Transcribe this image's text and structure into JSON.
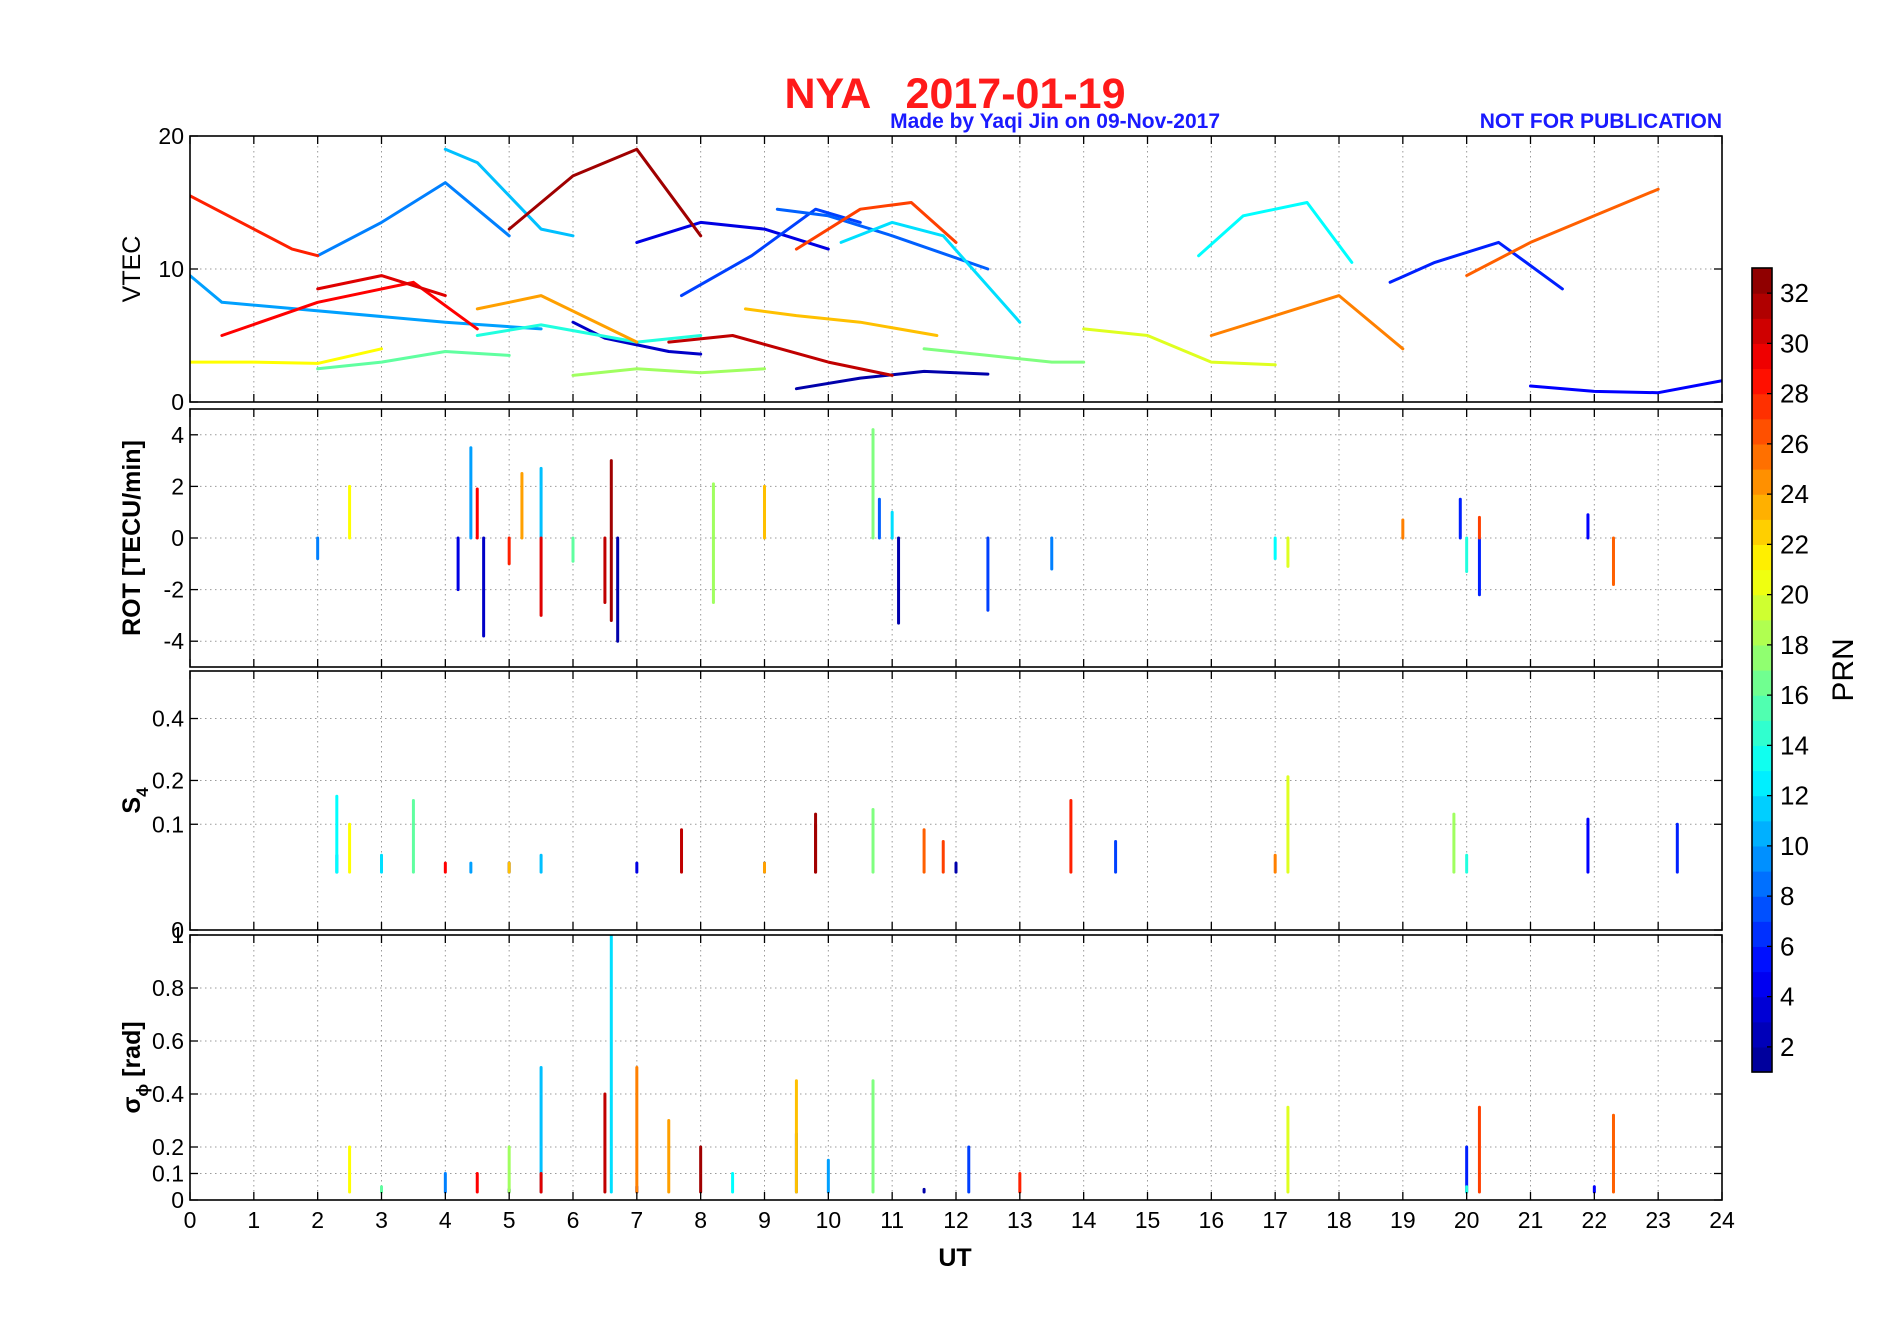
{
  "chart_data": {
    "type": "line",
    "title": "NYA   2017-01-19",
    "notes": {
      "made_by": "Made by Yaqi Jin on 09-Nov-2017",
      "publication": "NOT FOR PUBLICATION"
    },
    "xlabel": "UT",
    "xlim": [
      0,
      24
    ],
    "xticks": [
      "0",
      "1",
      "2",
      "3",
      "4",
      "5",
      "6",
      "7",
      "8",
      "9",
      "10",
      "11",
      "12",
      "13",
      "14",
      "15",
      "16",
      "17",
      "18",
      "19",
      "20",
      "21",
      "22",
      "23",
      "24"
    ],
    "grid": true,
    "panels": [
      {
        "name": "vtec",
        "ylabel": "VTEC",
        "ylim": [
          0,
          20
        ],
        "yticks": [
          {
            "v": 0,
            "t": "0"
          },
          {
            "v": 10,
            "t": "10"
          },
          {
            "v": 20,
            "t": "20"
          }
        ]
      },
      {
        "name": "rot",
        "ylabel": "ROT [TECU/min]",
        "ylim": [
          -5,
          5
        ],
        "yticks": [
          {
            "v": -4,
            "t": "-4"
          },
          {
            "v": -2,
            "t": "-2"
          },
          {
            "v": 0,
            "t": "0"
          },
          {
            "v": 2,
            "t": "2"
          },
          {
            "v": 4,
            "t": "4"
          }
        ]
      },
      {
        "name": "s4",
        "ylabel": "S",
        "ylabel_sub": "4",
        "ylim": [
          0,
          0.6
        ],
        "scale": "sqrt",
        "yticks": [
          {
            "v": 0,
            "t": "0"
          },
          {
            "v": 0.1,
            "t": "0.1"
          },
          {
            "v": 0.2,
            "t": "0.2"
          },
          {
            "v": 0.4,
            "t": "0.4"
          }
        ]
      },
      {
        "name": "sigma_phi",
        "ylabel": "σ",
        "ylabel_sub": "ϕ",
        "ylabel_rest": " [rad]",
        "ylim": [
          0,
          1
        ],
        "yticks": [
          {
            "v": 0,
            "t": "0"
          },
          {
            "v": 0.1,
            "t": "0.1"
          },
          {
            "v": 0.2,
            "t": "0.2"
          },
          {
            "v": 0.4,
            "t": "0.4"
          },
          {
            "v": 0.6,
            "t": "0.6"
          },
          {
            "v": 0.8,
            "t": "0.8"
          },
          {
            "v": 1,
            "t": "1"
          }
        ]
      }
    ],
    "colorbar": {
      "label": "PRN",
      "range": [
        1,
        33
      ],
      "ticks": [
        "2",
        "4",
        "6",
        "8",
        "10",
        "12",
        "14",
        "16",
        "18",
        "20",
        "22",
        "24",
        "26",
        "28",
        "30",
        "32"
      ],
      "colormap": [
        "#00008f",
        "#0000ff",
        "#0080ff",
        "#00ffff",
        "#80ff80",
        "#ffff00",
        "#ff8000",
        "#ff0000",
        "#800000"
      ]
    },
    "series": [
      {
        "prn": 2,
        "vtec": [
          [
            9.5,
            1
          ],
          [
            10.5,
            1.8
          ],
          [
            11.5,
            2.3
          ],
          [
            12.5,
            2.1
          ]
        ],
        "rot": [
          [
            6.7,
            -4
          ],
          [
            11.1,
            -3.3
          ]
        ],
        "s4": [
          [
            12,
            0.04
          ]
        ],
        "sig": [
          [
            11.5,
            0.04
          ]
        ]
      },
      {
        "prn": 3,
        "vtec": [
          [
            6,
            6
          ],
          [
            6.5,
            4.8
          ],
          [
            7.5,
            3.8
          ],
          [
            8,
            3.6
          ]
        ],
        "rot": [
          [
            4.6,
            -3.8
          ]
        ],
        "s4": [
          [
            5,
            0.04
          ]
        ],
        "sig": [
          [
            5,
            0.04
          ]
        ]
      },
      {
        "prn": 4,
        "vtec": [
          [
            7,
            12
          ],
          [
            8,
            13.5
          ],
          [
            9,
            13
          ],
          [
            10,
            11.5
          ]
        ],
        "rot": [
          [
            4.2,
            -2
          ]
        ],
        "s4": [
          [
            7,
            0.04
          ]
        ],
        "sig": [
          [
            7,
            0.05
          ]
        ]
      },
      {
        "prn": 5,
        "vtec": [
          [
            21,
            1.2
          ],
          [
            22,
            0.8
          ],
          [
            23,
            0.7
          ],
          [
            24,
            1.6
          ]
        ],
        "rot": [
          [
            21.9,
            0.9
          ]
        ],
        "s4": [
          [
            21.9,
            0.11
          ]
        ],
        "sig": [
          [
            22,
            0.05
          ]
        ]
      },
      {
        "prn": 6,
        "vtec": [
          [
            18.8,
            9
          ],
          [
            19.5,
            10.5
          ],
          [
            20.5,
            12
          ],
          [
            21.5,
            8.5
          ]
        ],
        "rot": [
          [
            20.2,
            -2.2
          ],
          [
            19.9,
            1.5
          ]
        ],
        "s4": [
          [
            23.3,
            0.1
          ]
        ],
        "sig": [
          [
            20,
            0.2
          ]
        ]
      },
      {
        "prn": 7,
        "vtec": [
          [
            7.7,
            8
          ],
          [
            8.8,
            11
          ],
          [
            9.8,
            14.5
          ],
          [
            10.5,
            13.5
          ]
        ],
        "rot": [
          [
            12.5,
            -2.8
          ]
        ],
        "s4": [
          [
            14.5,
            0.07
          ]
        ],
        "sig": [
          [
            12.2,
            0.2
          ]
        ]
      },
      {
        "prn": 8,
        "vtec": [
          [
            9.2,
            14.5
          ],
          [
            10,
            14
          ],
          [
            11,
            12.5
          ],
          [
            12.5,
            10
          ]
        ],
        "rot": [
          [
            10.8,
            1.5
          ]
        ],
        "s4": [
          [
            9,
            0.04
          ]
        ],
        "sig": [
          [
            9.5,
            0.25
          ]
        ]
      },
      {
        "prn": 9,
        "vtec": [
          [
            2,
            11
          ],
          [
            3,
            13.5
          ],
          [
            4,
            16.5
          ],
          [
            5,
            12.5
          ]
        ],
        "rot": [
          [
            2,
            -0.8
          ],
          [
            13.5,
            -1.2
          ]
        ],
        "s4": [
          [
            2.3,
            0.05
          ]
        ],
        "sig": [
          [
            4,
            0.1
          ]
        ]
      },
      {
        "prn": 10,
        "vtec": [
          [
            0,
            9.5
          ],
          [
            0.5,
            7.5
          ],
          [
            4,
            6
          ],
          [
            5.5,
            5.5
          ]
        ],
        "rot": [
          [
            4.4,
            3.5
          ]
        ],
        "s4": [
          [
            4.4,
            0.04
          ]
        ],
        "sig": [
          [
            10,
            0.15
          ]
        ]
      },
      {
        "prn": 11,
        "vtec": [
          [
            4,
            19
          ],
          [
            4.5,
            18
          ],
          [
            5.5,
            13
          ],
          [
            6,
            12.5
          ]
        ],
        "rot": [
          [
            5.5,
            2.7
          ]
        ],
        "s4": [
          [
            5.5,
            0.05
          ]
        ],
        "sig": [
          [
            5.5,
            0.5
          ]
        ]
      },
      {
        "prn": 12,
        "vtec": [
          [
            10.2,
            12
          ],
          [
            11,
            13.5
          ],
          [
            11.8,
            12.5
          ],
          [
            13,
            6
          ]
        ],
        "rot": [
          [
            11,
            1
          ]
        ],
        "s4": [
          [
            3,
            0.05
          ]
        ],
        "sig": [
          [
            6.6,
            1
          ]
        ]
      },
      {
        "prn": 13,
        "vtec": [
          [
            15.8,
            11
          ],
          [
            16.5,
            14
          ],
          [
            17.5,
            15
          ],
          [
            18.2,
            10.5
          ]
        ],
        "rot": [
          [
            17,
            -0.8
          ]
        ],
        "s4": [
          [
            2.3,
            0.16
          ]
        ],
        "sig": [
          [
            8.5,
            0.1
          ]
        ]
      },
      {
        "prn": 14,
        "vtec": [
          [
            4.5,
            5
          ],
          [
            5.5,
            5.8
          ],
          [
            7,
            4.5
          ],
          [
            8,
            5
          ]
        ],
        "rot": [
          [
            20,
            -1.3
          ]
        ],
        "s4": [
          [
            20,
            0.05
          ]
        ],
        "sig": [
          [
            20,
            0.05
          ]
        ]
      },
      {
        "prn": 16,
        "vtec": [
          [
            2,
            2.5
          ],
          [
            3,
            3
          ],
          [
            4,
            3.8
          ],
          [
            5,
            3.5
          ]
        ],
        "rot": [
          [
            6,
            -0.9
          ]
        ],
        "s4": [
          [
            3.5,
            0.15
          ]
        ],
        "sig": [
          [
            3,
            0.05
          ]
        ]
      },
      {
        "prn": 17,
        "vtec": [
          [
            11.5,
            4
          ],
          [
            12.5,
            3.5
          ],
          [
            13.5,
            3
          ],
          [
            14,
            3
          ]
        ],
        "rot": [
          [
            10.7,
            4.2
          ]
        ],
        "s4": [
          [
            10.7,
            0.13
          ]
        ],
        "sig": [
          [
            10.7,
            0.45
          ]
        ]
      },
      {
        "prn": 18,
        "vtec": [
          [
            6,
            2
          ],
          [
            7,
            2.5
          ],
          [
            8,
            2.2
          ],
          [
            9,
            2.5
          ]
        ],
        "rot": [
          [
            8.2,
            -2.5
          ],
          [
            8.2,
            2.1
          ]
        ],
        "s4": [
          [
            19.8,
            0.12
          ]
        ],
        "sig": [
          [
            5,
            0.2
          ]
        ]
      },
      {
        "prn": 20,
        "vtec": [
          [
            14,
            5.5
          ],
          [
            15,
            5
          ],
          [
            16,
            3
          ],
          [
            17,
            2.8
          ]
        ],
        "rot": [
          [
            17.2,
            -1.1
          ]
        ],
        "s4": [
          [
            17.2,
            0.21
          ]
        ],
        "sig": [
          [
            17.2,
            0.35
          ]
        ]
      },
      {
        "prn": 21,
        "vtec": [
          [
            0,
            3
          ],
          [
            1,
            3
          ],
          [
            2,
            2.9
          ],
          [
            3,
            4
          ]
        ],
        "rot": [
          [
            2.5,
            2
          ]
        ],
        "s4": [
          [
            2.5,
            0.1
          ]
        ],
        "sig": [
          [
            2.5,
            0.2
          ]
        ]
      },
      {
        "prn": 23,
        "vtec": [
          [
            8.7,
            7
          ],
          [
            9.5,
            6.5
          ],
          [
            10.5,
            6
          ],
          [
            11.7,
            5
          ]
        ],
        "rot": [
          [
            9,
            2
          ]
        ],
        "s4": [
          [
            5,
            0.04
          ]
        ],
        "sig": [
          [
            9.5,
            0.45
          ]
        ]
      },
      {
        "prn": 24,
        "vtec": [
          [
            4.5,
            7
          ],
          [
            5,
            7.5
          ],
          [
            5.5,
            8
          ],
          [
            7,
            4.5
          ]
        ],
        "rot": [
          [
            5.2,
            2.5
          ]
        ],
        "s4": [
          [
            9,
            0.04
          ]
        ],
        "sig": [
          [
            7.5,
            0.3
          ]
        ]
      },
      {
        "prn": 25,
        "vtec": [
          [
            16,
            5
          ],
          [
            17,
            6.5
          ],
          [
            18,
            8
          ],
          [
            19,
            4
          ]
        ],
        "rot": [
          [
            19,
            0.7
          ]
        ],
        "s4": [
          [
            17,
            0.05
          ]
        ],
        "sig": [
          [
            7,
            0.5
          ]
        ]
      },
      {
        "prn": 26,
        "vtec": [
          [
            20,
            9.5
          ],
          [
            21,
            12
          ],
          [
            22,
            14
          ],
          [
            23,
            16
          ]
        ],
        "rot": [
          [
            22.3,
            -1.8
          ]
        ],
        "s4": [
          [
            11.5,
            0.09
          ]
        ],
        "sig": [
          [
            22.3,
            0.32
          ]
        ]
      },
      {
        "prn": 27,
        "vtec": [
          [
            9.5,
            11.5
          ],
          [
            10.5,
            14.5
          ],
          [
            11.3,
            15
          ],
          [
            12,
            12
          ]
        ],
        "rot": [
          [
            20.2,
            0.8
          ]
        ],
        "s4": [
          [
            11.8,
            0.07
          ]
        ],
        "sig": [
          [
            20.2,
            0.35
          ]
        ]
      },
      {
        "prn": 28,
        "vtec": [
          [
            0,
            15.5
          ],
          [
            1,
            13
          ],
          [
            1.6,
            11.5
          ],
          [
            2,
            11
          ]
        ],
        "rot": [
          [
            5,
            -1
          ]
        ],
        "s4": [
          [
            13.8,
            0.15
          ]
        ],
        "sig": [
          [
            13,
            0.1
          ]
        ]
      },
      {
        "prn": 29,
        "vtec": [
          [
            0.5,
            5
          ],
          [
            2,
            7.5
          ],
          [
            3.5,
            9
          ],
          [
            4.5,
            5.5
          ]
        ],
        "rot": [
          [
            4.5,
            1.9
          ]
        ],
        "s4": [
          [
            4,
            0.04
          ]
        ],
        "sig": [
          [
            4.5,
            0.1
          ]
        ]
      },
      {
        "prn": 30,
        "vtec": [
          [
            2,
            8.5
          ],
          [
            3,
            9.5
          ],
          [
            4,
            8
          ]
        ],
        "rot": [
          [
            5.5,
            -3
          ]
        ],
        "s4": [
          [
            9.8,
            0.1
          ]
        ],
        "sig": [
          [
            5.5,
            0.1
          ]
        ]
      },
      {
        "prn": 31,
        "vtec": [
          [
            7.5,
            4.5
          ],
          [
            8.5,
            5
          ],
          [
            10,
            3
          ],
          [
            11,
            2
          ]
        ],
        "rot": [
          [
            6.5,
            -2.5
          ]
        ],
        "s4": [
          [
            7.7,
            0.09
          ]
        ],
        "sig": [
          [
            6.5,
            0.4
          ]
        ]
      },
      {
        "prn": 32,
        "vtec": [
          [
            5,
            13
          ],
          [
            6,
            17
          ],
          [
            7,
            19
          ],
          [
            8,
            12.5
          ]
        ],
        "rot": [
          [
            6.6,
            -3.2
          ],
          [
            6.6,
            3
          ]
        ],
        "s4": [
          [
            9.8,
            0.12
          ]
        ],
        "sig": [
          [
            8,
            0.2
          ]
        ]
      }
    ]
  }
}
